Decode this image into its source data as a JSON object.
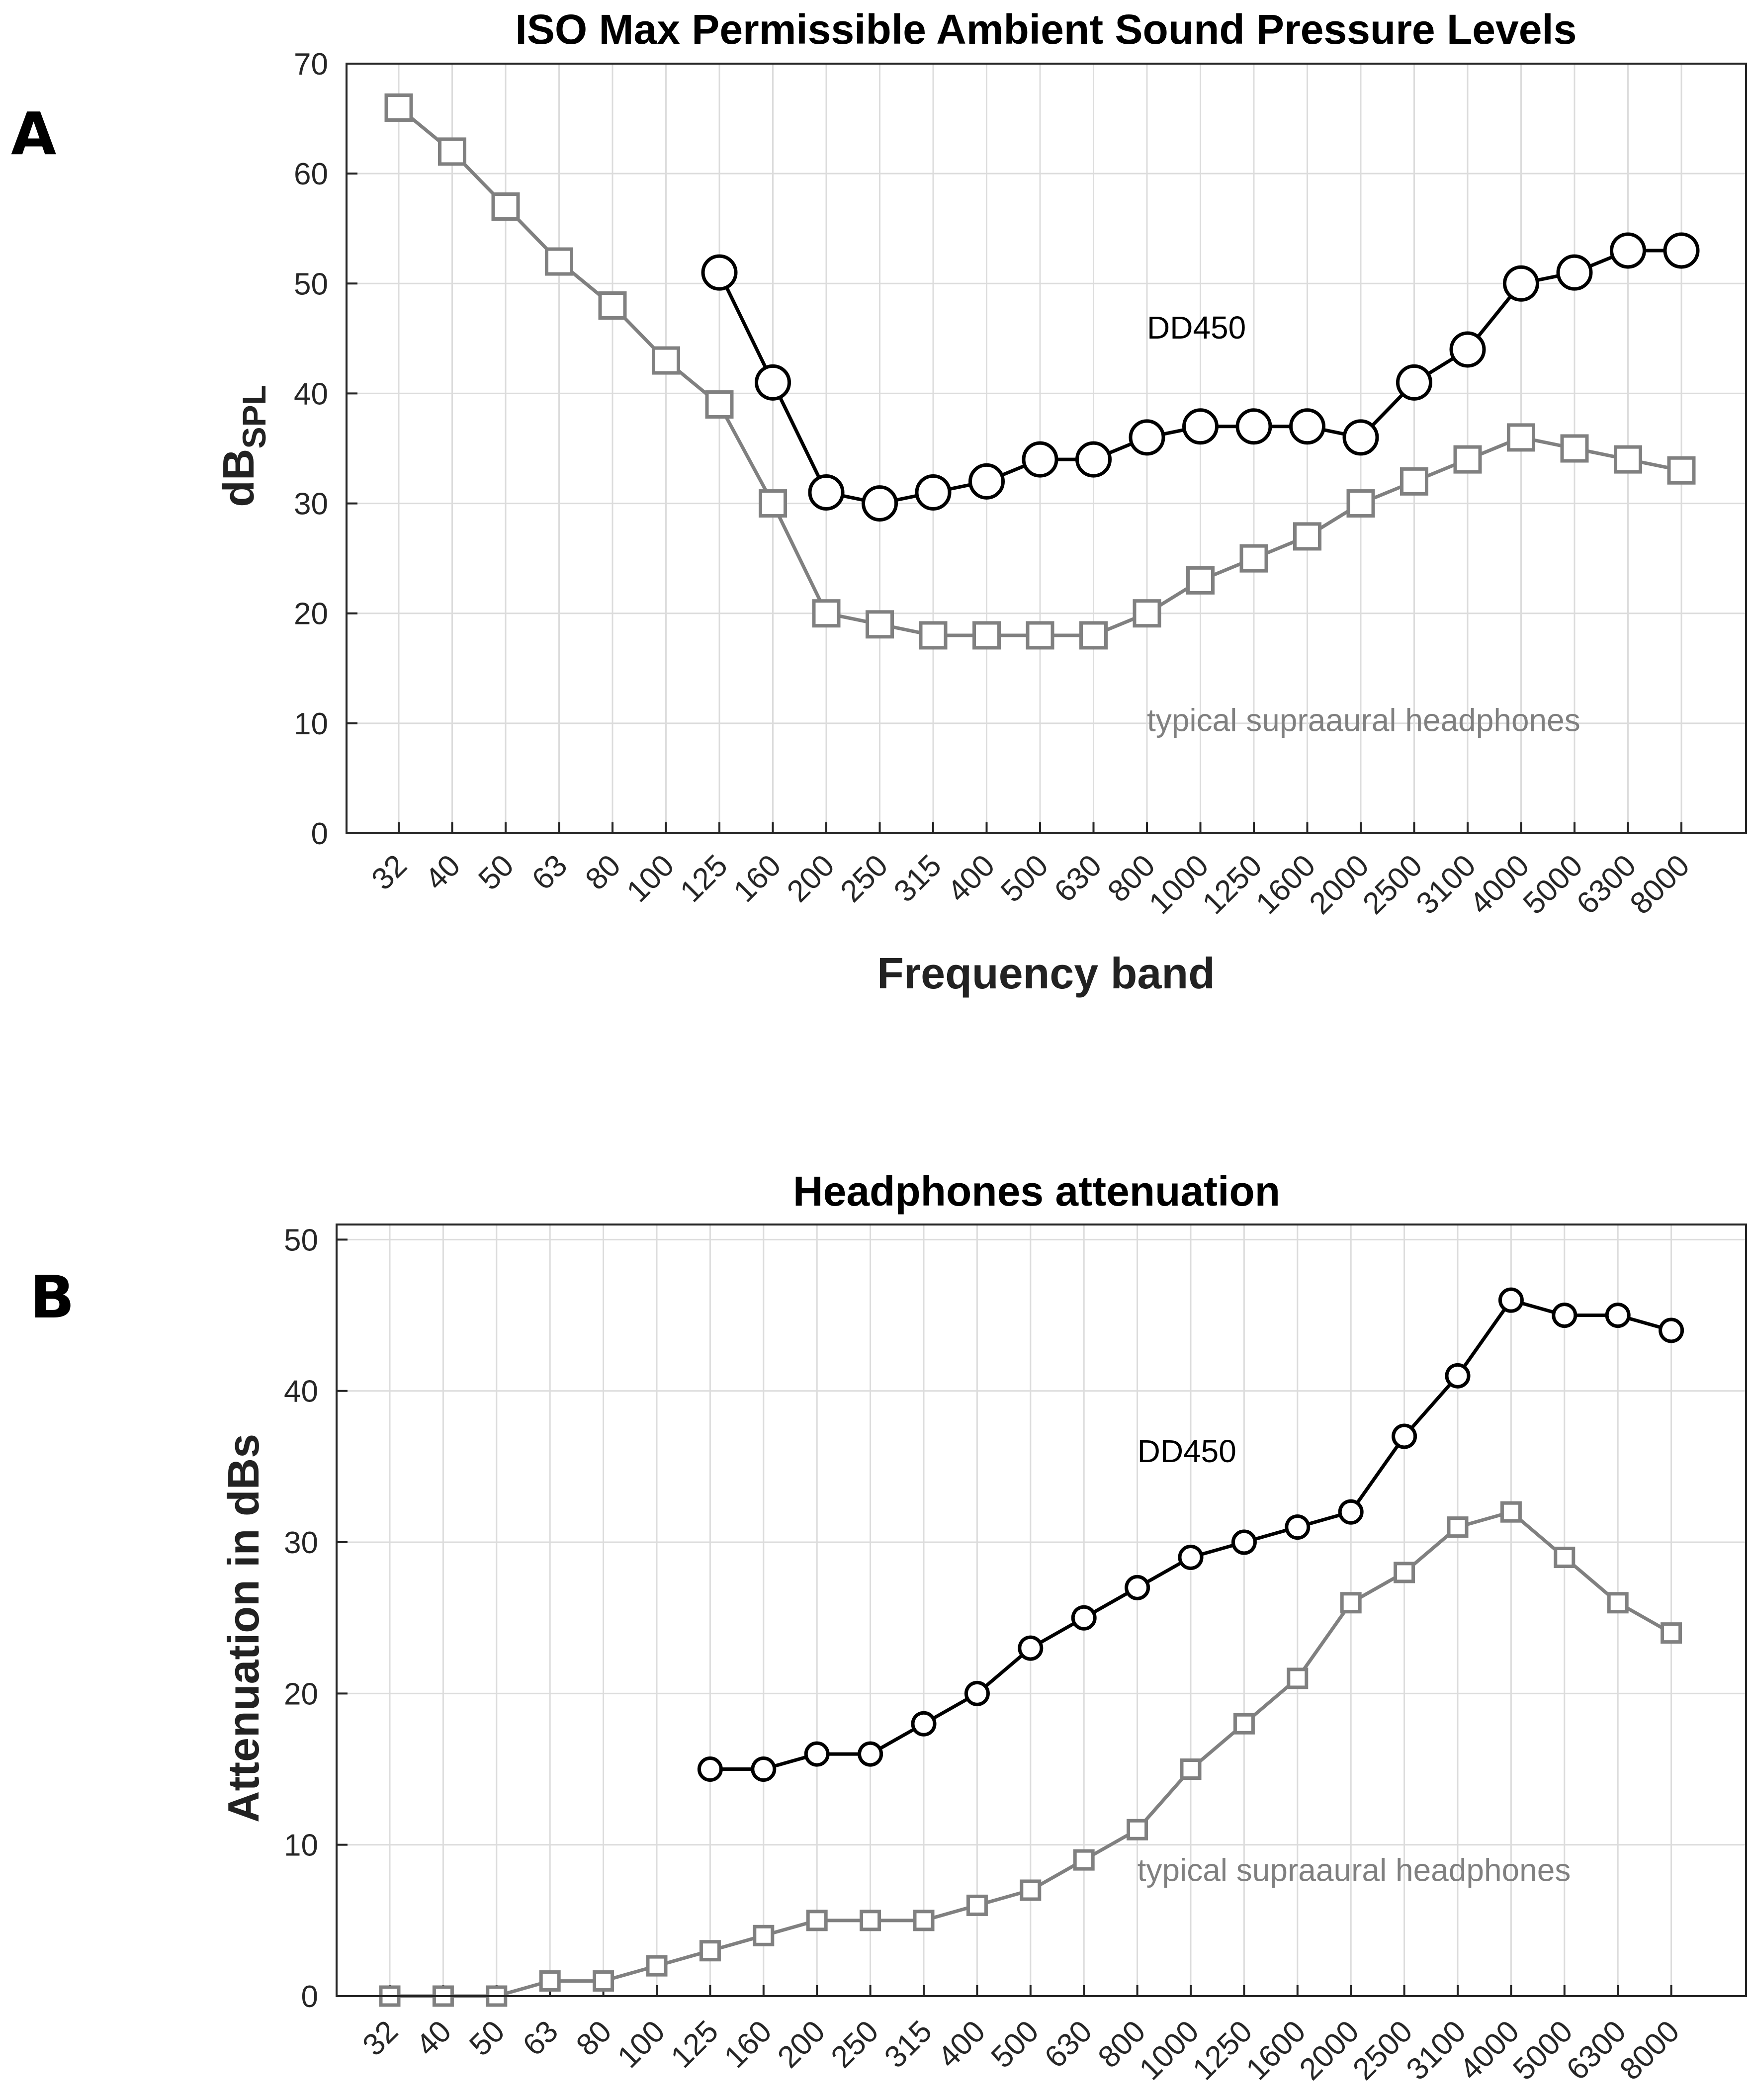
{
  "chart_data": [
    {
      "panel_label": "A",
      "type": "line",
      "title": "ISO Max Permissible Ambient Sound Pressure Levels",
      "ylabel_main": "dB",
      "ylabel_sub": "SPL",
      "xlabel": "Frequency band",
      "categories": [
        "32",
        "40",
        "50",
        "63",
        "80",
        "100",
        "125",
        "160",
        "200",
        "250",
        "315",
        "400",
        "500",
        "630",
        "800",
        "1000",
        "1250",
        "1600",
        "2000",
        "2500",
        "3100",
        "4000",
        "5000",
        "6300",
        "8000"
      ],
      "ylim": [
        0,
        70
      ],
      "yticks": [
        0,
        10,
        20,
        30,
        40,
        50,
        60,
        70
      ],
      "grid": true,
      "series": [
        {
          "name": "typical supraaural headphones",
          "color": "#808080",
          "marker": "square",
          "values": [
            66,
            62,
            57,
            52,
            48,
            43,
            39,
            30,
            20,
            19,
            18,
            18,
            18,
            18,
            20,
            23,
            25,
            27,
            30,
            32,
            34,
            36,
            35,
            34,
            33
          ]
        },
        {
          "name": "DD450",
          "color": "#000000",
          "marker": "circle",
          "values": [
            null,
            null,
            null,
            null,
            null,
            null,
            51,
            41,
            31,
            30,
            31,
            32,
            34,
            34,
            36,
            37,
            37,
            37,
            36,
            41,
            44,
            50,
            51,
            53,
            53
          ]
        }
      ],
      "annotations": [
        {
          "text": "DD450",
          "category": "800",
          "y": 45,
          "color": "#000000"
        },
        {
          "text": "typical supraaural headphones",
          "category": "800",
          "y": 9.3,
          "color": "#808080"
        }
      ]
    },
    {
      "panel_label": "B",
      "type": "line",
      "title": "Headphones attenuation",
      "ylabel": "Attenuation in dBs",
      "xlabel": "",
      "categories": [
        "32",
        "40",
        "50",
        "63",
        "80",
        "100",
        "125",
        "160",
        "200",
        "250",
        "315",
        "400",
        "500",
        "630",
        "800",
        "1000",
        "1250",
        "1600",
        "2000",
        "2500",
        "3100",
        "4000",
        "5000",
        "6300",
        "8000"
      ],
      "ylim": [
        0,
        51
      ],
      "yticks": [
        0,
        10,
        20,
        30,
        40,
        50
      ],
      "grid": true,
      "series": [
        {
          "name": "typical supraaural headphones",
          "color": "#808080",
          "marker": "square",
          "values": [
            0,
            0,
            0,
            1,
            1,
            2,
            3,
            4,
            5,
            5,
            5,
            6,
            7,
            9,
            11,
            15,
            18,
            21,
            26,
            28,
            31,
            32,
            29,
            26,
            24
          ]
        },
        {
          "name": "DD450",
          "color": "#000000",
          "marker": "circle",
          "values": [
            null,
            null,
            null,
            null,
            null,
            null,
            15,
            15,
            16,
            16,
            18,
            20,
            23,
            25,
            27,
            29,
            30,
            31,
            32,
            37,
            41,
            46,
            45,
            45,
            44
          ]
        }
      ],
      "annotations": [
        {
          "text": "DD450",
          "category": "800",
          "y": 35.3,
          "color": "#000000"
        },
        {
          "text": "typical supraaural headphones",
          "category": "800",
          "y": 7.6,
          "color": "#808080"
        }
      ]
    }
  ]
}
